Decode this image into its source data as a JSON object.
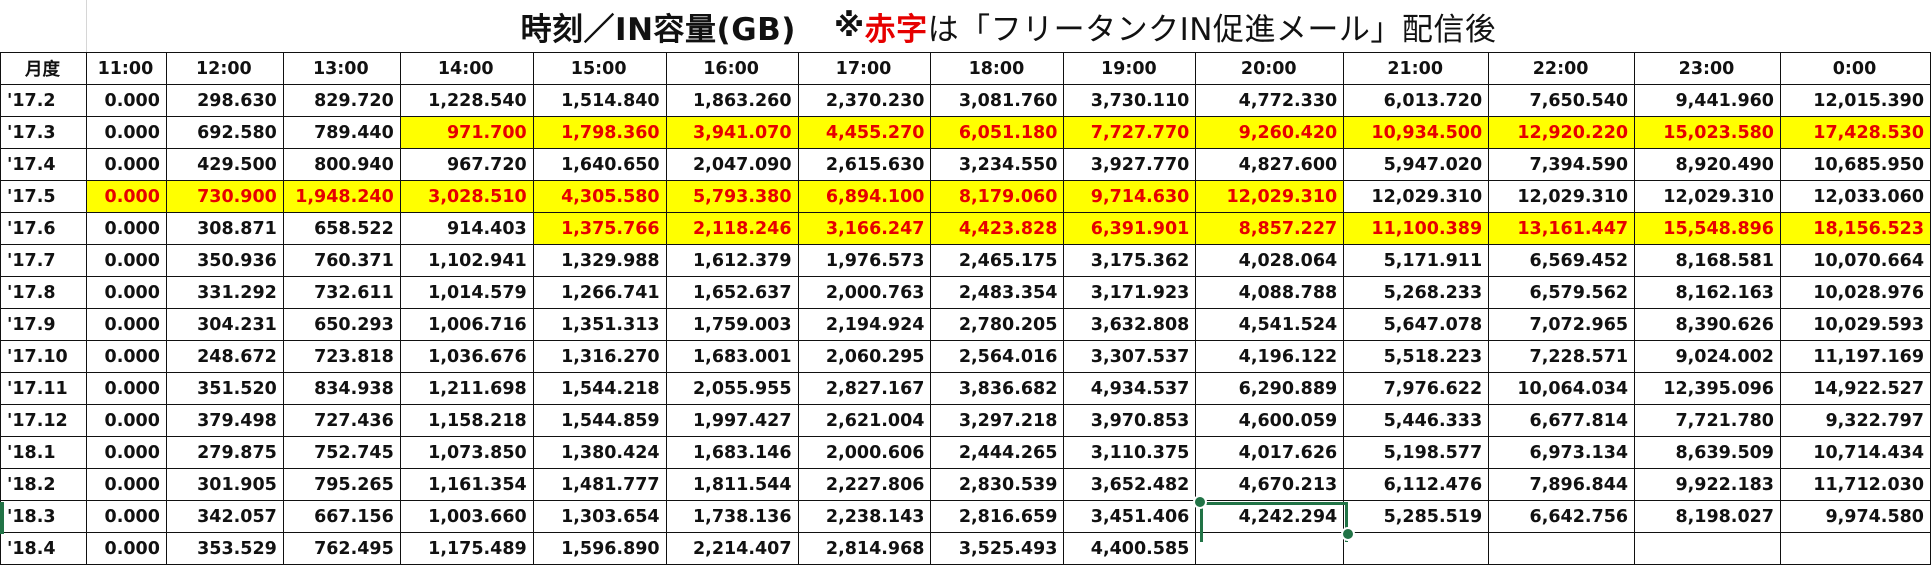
{
  "title": {
    "main": "時刻／IN容量(GB)",
    "note_mark": "※",
    "note_red": "赤字",
    "note_rest": "は「フリータンクIN促進メール」配信後"
  },
  "colors": {
    "highlight_fill": "#ffff00",
    "highlight_text": "#e60000",
    "selection": "#217346"
  },
  "headers": [
    "月度",
    "11:00",
    "12:00",
    "13:00",
    "14:00",
    "15:00",
    "16:00",
    "17:00",
    "18:00",
    "19:00",
    "20:00",
    "21:00",
    "22:00",
    "23:00",
    "0:00"
  ],
  "rows": [
    {
      "month": "'17.2",
      "values": [
        "0.000",
        "298.630",
        "829.720",
        "1,228.540",
        "1,514.840",
        "1,863.260",
        "2,370.230",
        "3,081.760",
        "3,730.110",
        "4,772.330",
        "6,013.720",
        "7,650.540",
        "9,441.960",
        "12,015.390"
      ],
      "highlight_from": -1
    },
    {
      "month": "'17.3",
      "values": [
        "0.000",
        "692.580",
        "789.440",
        "971.700",
        "1,798.360",
        "3,941.070",
        "4,455.270",
        "6,051.180",
        "7,727.770",
        "9,260.420",
        "10,934.500",
        "12,920.220",
        "15,023.580",
        "17,428.530"
      ],
      "highlight_from": 3
    },
    {
      "month": "'17.4",
      "values": [
        "0.000",
        "429.500",
        "800.940",
        "967.720",
        "1,640.650",
        "2,047.090",
        "2,615.630",
        "3,234.550",
        "3,927.770",
        "4,827.600",
        "5,947.020",
        "7,394.590",
        "8,920.490",
        "10,685.950"
      ],
      "highlight_from": -1
    },
    {
      "month": "'17.5",
      "values": [
        "0.000",
        "730.900",
        "1,948.240",
        "3,028.510",
        "4,305.580",
        "5,793.380",
        "6,894.100",
        "8,179.060",
        "9,714.630",
        "12,029.310",
        "12,029.310",
        "12,029.310",
        "12,029.310",
        "12,033.060"
      ],
      "highlight_from": 0,
      "highlight_to": 9
    },
    {
      "month": "'17.6",
      "values": [
        "0.000",
        "308.871",
        "658.522",
        "914.403",
        "1,375.766",
        "2,118.246",
        "3,166.247",
        "4,423.828",
        "6,391.901",
        "8,857.227",
        "11,100.389",
        "13,161.447",
        "15,548.896",
        "18,156.523"
      ],
      "highlight_from": 4
    },
    {
      "month": "'17.7",
      "values": [
        "0.000",
        "350.936",
        "760.371",
        "1,102.941",
        "1,329.988",
        "1,612.379",
        "1,976.573",
        "2,465.175",
        "3,175.362",
        "4,028.064",
        "5,171.911",
        "6,569.452",
        "8,168.581",
        "10,070.664"
      ],
      "highlight_from": -1
    },
    {
      "month": "'17.8",
      "values": [
        "0.000",
        "331.292",
        "732.611",
        "1,014.579",
        "1,266.741",
        "1,652.637",
        "2,000.763",
        "2,483.354",
        "3,171.923",
        "4,088.788",
        "5,268.233",
        "6,579.562",
        "8,162.163",
        "10,028.976"
      ],
      "highlight_from": -1
    },
    {
      "month": "'17.9",
      "values": [
        "0.000",
        "304.231",
        "650.293",
        "1,006.716",
        "1,351.313",
        "1,759.003",
        "2,194.924",
        "2,780.205",
        "3,632.808",
        "4,541.524",
        "5,647.078",
        "7,072.965",
        "8,390.626",
        "10,029.593"
      ],
      "highlight_from": -1
    },
    {
      "month": "'17.10",
      "values": [
        "0.000",
        "248.672",
        "723.818",
        "1,036.676",
        "1,316.270",
        "1,683.001",
        "2,060.295",
        "2,564.016",
        "3,307.537",
        "4,196.122",
        "5,518.223",
        "7,228.571",
        "9,024.002",
        "11,197.169"
      ],
      "highlight_from": -1
    },
    {
      "month": "'17.11",
      "values": [
        "0.000",
        "351.520",
        "834.938",
        "1,211.698",
        "1,544.218",
        "2,055.955",
        "2,827.167",
        "3,836.682",
        "4,934.537",
        "6,290.889",
        "7,976.622",
        "10,064.034",
        "12,395.096",
        "14,922.527"
      ],
      "highlight_from": -1
    },
    {
      "month": "'17.12",
      "values": [
        "0.000",
        "379.498",
        "727.436",
        "1,158.218",
        "1,544.859",
        "1,997.427",
        "2,621.004",
        "3,297.218",
        "3,970.853",
        "4,600.059",
        "5,446.333",
        "6,677.814",
        "7,721.780",
        "9,322.797"
      ],
      "highlight_from": -1
    },
    {
      "month": "'18.1",
      "values": [
        "0.000",
        "279.875",
        "752.745",
        "1,073.850",
        "1,380.424",
        "1,683.146",
        "2,000.606",
        "2,444.265",
        "3,110.375",
        "4,017.626",
        "5,198.577",
        "6,973.134",
        "8,639.509",
        "10,714.434"
      ],
      "highlight_from": -1
    },
    {
      "month": "'18.2",
      "values": [
        "0.000",
        "301.905",
        "795.265",
        "1,161.354",
        "1,481.777",
        "1,811.544",
        "2,227.806",
        "2,830.539",
        "3,652.482",
        "4,670.213",
        "6,112.476",
        "7,896.844",
        "9,922.183",
        "11,712.030"
      ],
      "highlight_from": -1
    },
    {
      "month": "'18.3",
      "values": [
        "0.000",
        "342.057",
        "667.156",
        "1,003.660",
        "1,303.654",
        "1,738.136",
        "2,238.143",
        "2,816.659",
        "3,451.406",
        "4,242.294",
        "5,285.519",
        "6,642.756",
        "8,198.027",
        "9,974.580"
      ],
      "highlight_from": -1
    },
    {
      "month": "'18.4",
      "values": [
        "0.000",
        "353.529",
        "762.495",
        "1,175.489",
        "1,596.890",
        "2,214.407",
        "2,814.968",
        "3,525.493",
        "4,400.585",
        "",
        "",
        "",
        "",
        ""
      ],
      "highlight_from": -1
    }
  ]
}
